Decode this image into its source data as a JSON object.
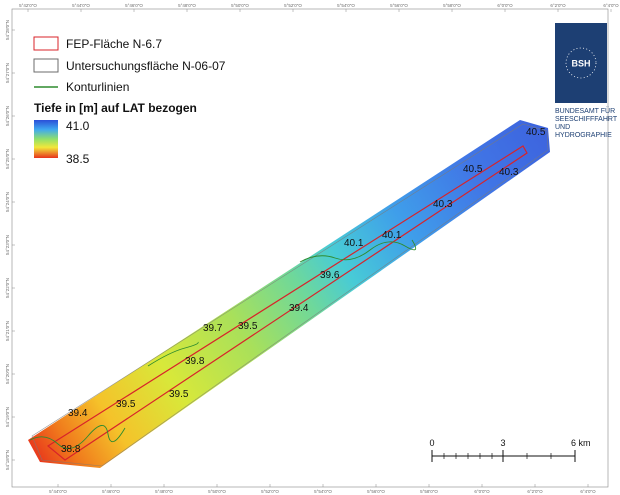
{
  "legend": {
    "fep_label": "FEP-Fläche N-6.7",
    "survey_label": "Untersuchungsfläche N-06-07",
    "contour_label": "Konturlinien",
    "depth_title": "Tiefe in [m] auf LAT bezogen",
    "depth_max": "41.0",
    "depth_min": "38.5"
  },
  "colors": {
    "fep_outline": "#d8232a",
    "survey_outline": "#6b6b6b",
    "contour_line": "#2e8b2e",
    "logo_blue": "#1d3f73"
  },
  "logo": {
    "badge_text": "BSH",
    "agency_lines": [
      "BUNDESAMT FÜR",
      "SEESCHIFFFAHRT",
      "UND",
      "HYDROGRAPHIE"
    ]
  },
  "contour_labels": [
    {
      "text": "40.5"
    },
    {
      "text": "40.5"
    },
    {
      "text": "40.3"
    },
    {
      "text": "40.3"
    },
    {
      "text": "40.1"
    },
    {
      "text": "40.1"
    },
    {
      "text": "39.6"
    },
    {
      "text": "39.4"
    },
    {
      "text": "39.7"
    },
    {
      "text": "39.5"
    },
    {
      "text": "39.8"
    },
    {
      "text": "39.5"
    },
    {
      "text": "39.4"
    },
    {
      "text": "39.5"
    },
    {
      "text": "38.8"
    }
  ],
  "scale_bar": {
    "labels": [
      "0",
      "3",
      "6 km"
    ]
  },
  "ticks": {
    "top": [
      "5°42'0\"O",
      "5°44'0\"O",
      "5°46'0\"O",
      "5°48'0\"O",
      "5°50'0\"O",
      "5°52'0\"O",
      "5°54'0\"O",
      "5°56'0\"O",
      "5°58'0\"O",
      "6°0'0\"O",
      "6°2'0\"O",
      "6°4'0\"O"
    ],
    "bottom": [
      "5°44'0\"O",
      "5°46'0\"O",
      "5°48'0\"O",
      "5°50'0\"O",
      "5°52'0\"O",
      "5°54'0\"O",
      "5°56'0\"O",
      "5°58'0\"O",
      "6°0'0\"O",
      "6°2'0\"O",
      "6°4'0\"O"
    ],
    "left": [
      "54°28'0\"N",
      "54°27'0\"N",
      "54°26'0\"N",
      "54°25'0\"N",
      "54°24'0\"N",
      "54°23'0\"N",
      "54°22'0\"N",
      "54°21'0\"N",
      "54°20'0\"N",
      "54°19'0\"N",
      "54°18'0\"N"
    ]
  }
}
